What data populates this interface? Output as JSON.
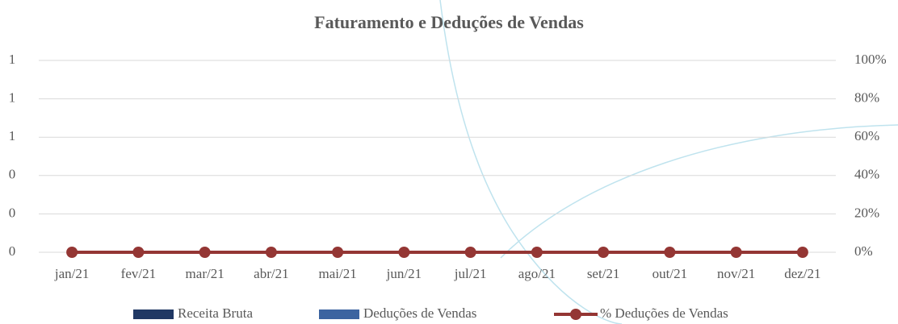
{
  "chart_data": {
    "type": "bar_line",
    "title": "Faturamento e Deduções de Vendas",
    "categories": [
      "jan/21",
      "fev/21",
      "mar/21",
      "abr/21",
      "mai/21",
      "jun/21",
      "jul/21",
      "ago/21",
      "set/21",
      "out/21",
      "nov/21",
      "dez/21"
    ],
    "series": [
      {
        "name": "Receita Bruta",
        "color": "#203864",
        "type": "bar",
        "values": [
          0,
          0,
          0,
          0,
          0,
          0,
          0,
          0,
          0,
          0,
          0,
          0
        ]
      },
      {
        "name": "Deduções de Vendas",
        "color": "#3c64a0",
        "type": "bar",
        "values": [
          0,
          0,
          0,
          0,
          0,
          0,
          0,
          0,
          0,
          0,
          0,
          0
        ]
      },
      {
        "name": "% Deduções de Vendas",
        "color": "#943634",
        "type": "line",
        "axis": "y2",
        "values": [
          0,
          0,
          0,
          0,
          0,
          0,
          0,
          0,
          0,
          0,
          0,
          0
        ]
      }
    ],
    "ylim": [
      0,
      1
    ],
    "yticks": [
      0,
      {
        "value": 0.2,
        "label": "0"
      },
      {
        "value": 0.4,
        "label": "0"
      },
      {
        "value": 0.6,
        "label": "1"
      },
      {
        "value": 0.8,
        "label": "1"
      },
      {
        "value": 1,
        "label": "1"
      }
    ],
    "y2lim": [
      0,
      100
    ],
    "y2ticks": [
      {
        "value": 0,
        "label": "0%"
      },
      {
        "value": 20,
        "label": "20%"
      },
      {
        "value": 40,
        "label": "40%"
      },
      {
        "value": 60,
        "label": "60%"
      },
      {
        "value": 80,
        "label": "80%"
      },
      {
        "value": 100,
        "label": "100%"
      }
    ],
    "grid": true,
    "legend": "bottom"
  }
}
